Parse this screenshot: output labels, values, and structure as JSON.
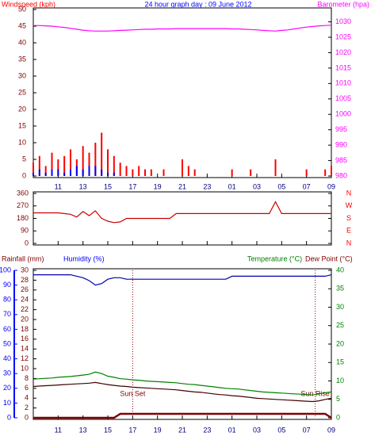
{
  "chart_data": [
    {
      "type": "line",
      "headers": [
        {
          "text": "Windspeed (kph)",
          "color": "#ff0000"
        },
        {
          "text": "24 hour graph day : 09 June 2012",
          "color": "#0000ff"
        },
        {
          "text": "Barometer (hpa)",
          "color": "#ff00ff"
        }
      ],
      "xlim": [
        9,
        33
      ],
      "xticks": [
        11,
        13,
        15,
        17,
        19,
        21,
        23,
        {
          "value": 25,
          "label": "01"
        },
        {
          "value": 27,
          "label": "03"
        },
        {
          "value": 29,
          "label": "05"
        },
        {
          "value": 31,
          "label": "07"
        },
        {
          "value": 33,
          "label": "09"
        }
      ],
      "ylim": [
        0,
        50
      ],
      "yticks": [
        0,
        5,
        10,
        15,
        20,
        25,
        30,
        35,
        40,
        45,
        50
      ],
      "ycolor": "#800000",
      "y2lim": [
        980,
        1034
      ],
      "y2ticks": [
        980,
        985,
        990,
        995,
        1000,
        1005,
        1010,
        1015,
        1020,
        1025,
        1030
      ],
      "y2color": "#ff00ff",
      "x": [
        9,
        9.5,
        10,
        10.5,
        11,
        11.5,
        12,
        12.5,
        13,
        13.5,
        14,
        14.5,
        15,
        15.5,
        16,
        16.5,
        17,
        17.5,
        18,
        18.5,
        19,
        19.5,
        20,
        20.5,
        21,
        21.5,
        22,
        22.5,
        23,
        23.5,
        24,
        24.5,
        25,
        25.5,
        26,
        26.5,
        27,
        27.5,
        28,
        28.5,
        29,
        29.5,
        30,
        30.5,
        31,
        31.5,
        32,
        32.5,
        33
      ],
      "series": [
        {
          "kind": "bars",
          "color": "#ff0000",
          "axis": "y",
          "values": [
            4,
            6,
            3,
            7,
            5,
            6,
            8,
            5,
            9,
            7,
            10,
            13,
            8,
            6,
            4,
            3,
            2,
            3,
            2,
            2,
            0,
            2,
            0,
            0,
            5,
            3,
            2,
            0,
            0,
            0,
            0,
            0,
            2,
            0,
            0,
            2,
            0,
            0,
            0,
            5,
            0,
            0,
            0,
            0,
            2,
            0,
            0,
            2,
            3
          ]
        },
        {
          "kind": "bars",
          "color": "#0000ff",
          "axis": "y",
          "values": [
            1,
            2,
            1,
            2,
            2,
            1,
            2,
            3,
            2,
            3,
            3,
            2,
            1,
            1,
            0,
            0,
            0,
            0,
            0,
            0,
            0,
            0,
            0,
            0,
            0,
            0,
            0,
            0,
            0,
            0,
            0,
            0,
            0,
            0,
            0,
            0,
            0,
            0,
            0,
            0,
            0,
            0,
            0,
            0,
            0,
            0,
            0,
            0,
            0
          ]
        },
        {
          "kind": "line",
          "color": "#ff00ff",
          "axis": "y2",
          "values": [
            1028.8,
            1028.8,
            1028.7,
            1028.6,
            1028.4,
            1028.2,
            1027.9,
            1027.6,
            1027.3,
            1027.1,
            1027.0,
            1027.0,
            1027.0,
            1027.1,
            1027.2,
            1027.3,
            1027.4,
            1027.5,
            1027.6,
            1027.6,
            1027.7,
            1027.7,
            1027.7,
            1027.8,
            1027.8,
            1027.8,
            1027.8,
            1027.8,
            1027.8,
            1027.8,
            1027.8,
            1027.8,
            1027.7,
            1027.7,
            1027.6,
            1027.5,
            1027.4,
            1027.2,
            1027.1,
            1027.0,
            1027.2,
            1027.4,
            1027.7,
            1028.0,
            1028.3,
            1028.5,
            1028.7,
            1028.8,
            1028.9
          ]
        }
      ]
    },
    {
      "type": "line",
      "xlim": [
        9,
        33
      ],
      "ylim": [
        0,
        360
      ],
      "yticks": [
        0,
        90,
        180,
        270,
        360
      ],
      "ycolor": "#800000",
      "y2lim": [
        0,
        360
      ],
      "y2ticks": [
        {
          "value": 0,
          "label": "N"
        },
        {
          "value": 90,
          "label": "E"
        },
        {
          "value": 180,
          "label": "S"
        },
        {
          "value": 270,
          "label": "W"
        },
        {
          "value": 360,
          "label": "N"
        }
      ],
      "y2color": "#ff0000",
      "x": [
        9,
        9.5,
        10,
        10.5,
        11,
        11.5,
        12,
        12.5,
        13,
        13.5,
        14,
        14.5,
        15,
        15.5,
        16,
        16.5,
        17,
        17.5,
        18,
        18.5,
        19,
        19.5,
        20,
        20.5,
        21,
        21.5,
        22,
        22.5,
        23,
        23.5,
        24,
        24.5,
        25,
        25.5,
        26,
        26.5,
        27,
        27.5,
        28,
        28.5,
        29,
        29.5,
        30,
        30.5,
        31,
        31.5,
        32,
        32.5,
        33
      ],
      "series": [
        {
          "kind": "line",
          "color": "#cc0000",
          "axis": "y",
          "values": [
            220,
            220,
            220,
            220,
            220,
            215,
            210,
            190,
            230,
            200,
            235,
            180,
            160,
            150,
            155,
            180,
            180,
            180,
            180,
            180,
            180,
            180,
            180,
            215,
            215,
            215,
            215,
            215,
            215,
            215,
            215,
            215,
            215,
            215,
            215,
            215,
            215,
            215,
            215,
            300,
            215,
            215,
            215,
            215,
            215,
            215,
            215,
            215,
            215
          ]
        }
      ]
    },
    {
      "type": "line",
      "headers": [
        {
          "text": "Rainfall (mm)",
          "color": "#800000"
        },
        {
          "text": "Humidity (%)",
          "color": "#0000ff"
        },
        {
          "text": "Temperature (°C)",
          "color": "#008000"
        },
        {
          "text": "Dew Point (°C)",
          "color": "#800000"
        }
      ],
      "xlim": [
        9,
        33
      ],
      "xticks": [
        11,
        13,
        15,
        17,
        19,
        21,
        23,
        {
          "value": 25,
          "label": "01"
        },
        {
          "value": 27,
          "label": "03"
        },
        {
          "value": 29,
          "label": "05"
        },
        {
          "value": 31,
          "label": "07"
        },
        {
          "value": 33,
          "label": "09"
        }
      ],
      "ylim": [
        0,
        30
      ],
      "yticks": [
        0,
        2,
        4,
        6,
        8,
        10,
        12,
        14,
        16,
        18,
        20,
        22,
        24,
        26,
        28,
        30
      ],
      "ycolor": "#800000",
      "y2lim": [
        0,
        40
      ],
      "y2ticks": [
        0,
        5,
        10,
        15,
        20,
        25,
        30,
        35,
        40
      ],
      "y2color": "#008000",
      "y3lim": [
        0,
        100
      ],
      "y3ticks": [
        0,
        10,
        20,
        30,
        40,
        50,
        60,
        70,
        80,
        90,
        100
      ],
      "y3color": "#0000ff",
      "annotations": [
        {
          "text": "Sun Set",
          "x": 17.0
        },
        {
          "text": "Sun Rise",
          "x": 31.7
        }
      ],
      "x": [
        9,
        9.5,
        10,
        10.5,
        11,
        11.5,
        12,
        12.5,
        13,
        13.5,
        14,
        14.5,
        15,
        15.5,
        16,
        16.5,
        17,
        17.5,
        18,
        18.5,
        19,
        19.5,
        20,
        20.5,
        21,
        21.5,
        22,
        22.5,
        23,
        23.5,
        24,
        24.5,
        25,
        25.5,
        26,
        26.5,
        27,
        27.5,
        28,
        28.5,
        29,
        29.5,
        30,
        30.5,
        31,
        31.5,
        32,
        32.5,
        33
      ],
      "series": [
        {
          "kind": "line",
          "color": "#0000aa",
          "axis": "y3",
          "values": [
            97,
            97,
            97,
            97,
            97,
            97,
            97,
            96,
            95,
            93,
            90,
            91,
            94,
            95,
            95,
            94,
            94,
            94,
            94,
            94,
            94,
            94,
            94,
            94,
            94,
            94,
            94,
            94,
            94,
            94,
            94,
            94,
            96,
            96,
            96,
            96,
            96,
            96,
            96,
            96,
            96,
            96,
            96,
            96,
            96,
            96,
            96,
            96,
            97
          ]
        },
        {
          "kind": "line",
          "color": "#008000",
          "axis": "y2",
          "values": [
            10.5,
            10.6,
            10.7,
            10.8,
            11,
            11.1,
            11.2,
            11.4,
            11.6,
            11.8,
            12.4,
            12,
            11.3,
            11,
            10.6,
            10.5,
            10.3,
            10.2,
            10,
            9.9,
            9.8,
            9.7,
            9.6,
            9.5,
            9.3,
            9.1,
            9,
            8.8,
            8.6,
            8.4,
            8.2,
            8,
            7.9,
            7.8,
            7.6,
            7.4,
            7.2,
            7,
            6.9,
            6.8,
            6.7,
            6.6,
            6.5,
            6.4,
            6.3,
            6.2,
            6.5,
            6.8,
            7
          ]
        },
        {
          "kind": "line",
          "color": "#400000",
          "axis": "y2",
          "values": [
            8.5,
            8.6,
            8.7,
            8.8,
            8.9,
            9,
            9.1,
            9.2,
            9.3,
            9.4,
            9.6,
            9.3,
            9,
            8.8,
            8.6,
            8.5,
            8.3,
            8.2,
            8.1,
            8,
            7.9,
            7.8,
            7.7,
            7.6,
            7.4,
            7.2,
            7,
            6.9,
            6.7,
            6.5,
            6.3,
            6.2,
            6,
            5.9,
            5.7,
            5.5,
            5.3,
            5.2,
            5.1,
            5,
            4.9,
            4.8,
            4.7,
            4.6,
            4.5,
            4.4,
            4.6,
            5,
            5.3
          ]
        },
        {
          "kind": "line",
          "color": "#800000",
          "axis": "y",
          "width": 2.5,
          "values": [
            0,
            0,
            0,
            0,
            0,
            0,
            0,
            0,
            0,
            0,
            0,
            0,
            0,
            0,
            0.8,
            0.8,
            0.8,
            0.8,
            0.8,
            0.8,
            0.8,
            0.8,
            0.8,
            0.8,
            0.8,
            0.8,
            0.8,
            0.8,
            0.8,
            0.8,
            0.8,
            0.8,
            0.8,
            0.8,
            0.8,
            0.8,
            0.8,
            0.8,
            0.8,
            0.8,
            0.8,
            0.8,
            0.8,
            0.8,
            0.8,
            0.8,
            0.8,
            0.8,
            0
          ]
        }
      ]
    }
  ]
}
